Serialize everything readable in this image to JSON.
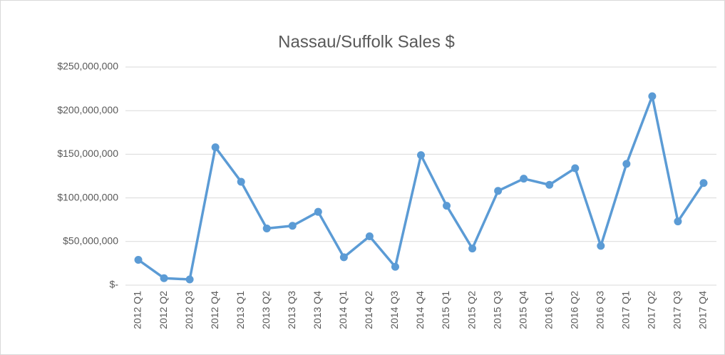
{
  "chart_data": {
    "type": "line",
    "title": "Nassau/Suffolk Sales $",
    "categories": [
      "2012 Q1",
      "2012 Q2",
      "2012 Q3",
      "2012 Q4",
      "2013 Q1",
      "2013 Q2",
      "2013 Q3",
      "2013 Q4",
      "2014 Q1",
      "2014 Q2",
      "2014 Q3",
      "2014 Q4",
      "2015 Q1",
      "2015 Q2",
      "2015 Q3",
      "2015 Q4",
      "2016 Q1",
      "2016 Q2",
      "2016 Q3",
      "2017 Q1",
      "2017 Q2",
      "2017 Q3",
      "2017 Q4"
    ],
    "series": [
      {
        "name": "Sales",
        "color": "#5b9bd5",
        "values": [
          29000000,
          8000000,
          6500000,
          158000000,
          118500000,
          65000000,
          68000000,
          84000000,
          32000000,
          56000000,
          21000000,
          149000000,
          91000000,
          42000000,
          108000000,
          122000000,
          115000000,
          134000000,
          45000000,
          139000000,
          216500000,
          73000000,
          117000000
        ]
      }
    ],
    "ylim": [
      0,
      250000000
    ],
    "yticks": [
      {
        "value": 0,
        "label": "$-"
      },
      {
        "value": 50000000,
        "label": "$50,000,000"
      },
      {
        "value": 100000000,
        "label": "$100,000,000"
      },
      {
        "value": 150000000,
        "label": "$150,000,000"
      },
      {
        "value": 200000000,
        "label": "$200,000,000"
      },
      {
        "value": 250000000,
        "label": "$250,000,000"
      }
    ],
    "grid": true
  }
}
